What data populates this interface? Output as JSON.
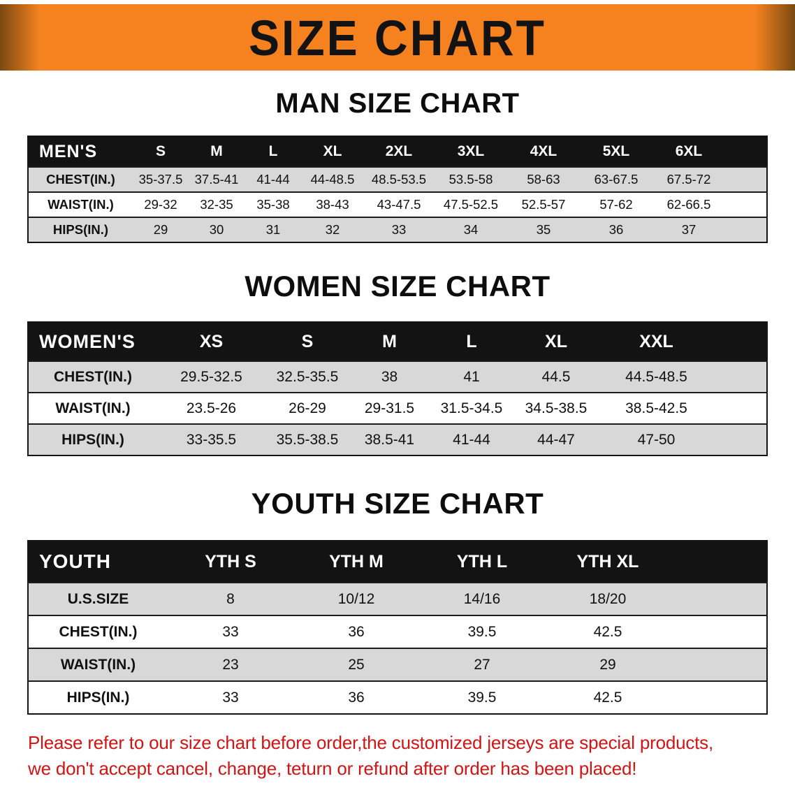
{
  "banner": {
    "title": "SIZE CHART",
    "bg_color": "#f5821f",
    "edge_color": "#7a4a12",
    "text_color": "#131313"
  },
  "sections": [
    {
      "id": "men",
      "heading": "MAN SIZE CHART",
      "table": {
        "header": [
          "MEN'S",
          "S",
          "M",
          "L",
          "XL",
          "2XL",
          "3XL",
          "4XL",
          "5XL",
          "6XL"
        ],
        "rows": [
          [
            "CHEST(IN.)",
            "35-37.5",
            "37.5-41",
            "41-44",
            "44-48.5",
            "48.5-53.5",
            "53.5-58",
            "58-63",
            "63-67.5",
            "67.5-72"
          ],
          [
            "WAIST(IN.)",
            "29-32",
            "32-35",
            "35-38",
            "38-43",
            "43-47.5",
            "47.5-52.5",
            "52.5-57",
            "57-62",
            "62-66.5"
          ],
          [
            "HIPS(IN.)",
            "29",
            "30",
            "31",
            "32",
            "33",
            "34",
            "35",
            "36",
            "37"
          ]
        ]
      }
    },
    {
      "id": "women",
      "heading": "WOMEN SIZE CHART",
      "table": {
        "header": [
          "WOMEN'S",
          "XS",
          "S",
          "M",
          "L",
          "XL",
          "XXL"
        ],
        "rows": [
          [
            "CHEST(IN.)",
            "29.5-32.5",
            "32.5-35.5",
            "38",
            "41",
            "44.5",
            "44.5-48.5"
          ],
          [
            "WAIST(IN.)",
            "23.5-26",
            "26-29",
            "29-31.5",
            "31.5-34.5",
            "34.5-38.5",
            "38.5-42.5"
          ],
          [
            "HIPS(IN.)",
            "33-35.5",
            "35.5-38.5",
            "38.5-41",
            "41-44",
            "44-47",
            "47-50"
          ]
        ]
      }
    },
    {
      "id": "youth",
      "heading": "YOUTH SIZE CHART",
      "table": {
        "header": [
          "YOUTH",
          "YTH S",
          "YTH M",
          "YTH L",
          "YTH XL"
        ],
        "rows": [
          [
            "U.S.SIZE",
            "8",
            "10/12",
            "14/16",
            "18/20"
          ],
          [
            "CHEST(IN.)",
            "33",
            "36",
            "39.5",
            "42.5"
          ],
          [
            "WAIST(IN.)",
            "23",
            "25",
            "27",
            "29"
          ],
          [
            "HIPS(IN.)",
            "33",
            "36",
            "39.5",
            "42.5"
          ]
        ]
      }
    }
  ],
  "disclaimer": {
    "color": "#d31414",
    "lines": [
      "Please refer to our size chart before order,the customized jerseys are special products,",
      "we don't accept cancel, change, teturn or refund after order has been placed!"
    ]
  }
}
